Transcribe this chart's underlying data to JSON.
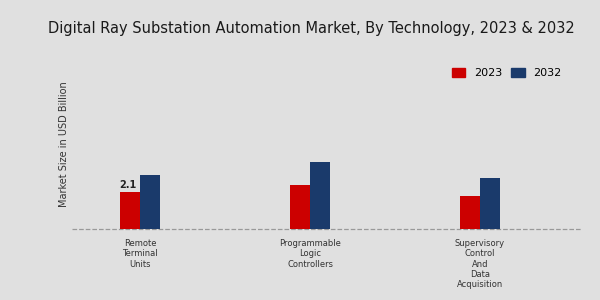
{
  "title": "Digital Ray Substation Automation Market, By Technology, 2023 & 2032",
  "ylabel": "Market Size in USD Billion",
  "categories": [
    "Remote\nTerminal\nUnits",
    "Programmable\nLogic\nControllers",
    "Supervisory\nControl\nAnd\nData\nAcquisition"
  ],
  "values_2023": [
    2.1,
    2.5,
    1.9
  ],
  "values_2032": [
    3.1,
    3.8,
    2.9
  ],
  "color_2023": "#cc0000",
  "color_2032": "#1a3a6b",
  "annotation_val": "2.1",
  "background_color": "#e0e0e0",
  "title_fontsize": 10.5,
  "legend_labels": [
    "2023",
    "2032"
  ],
  "bar_width": 0.18,
  "x_positions": [
    0.5,
    2.0,
    3.5
  ],
  "xlim": [
    -0.1,
    4.4
  ],
  "ylim": [
    -0.3,
    10.0
  ],
  "dashed_y": 0.0
}
